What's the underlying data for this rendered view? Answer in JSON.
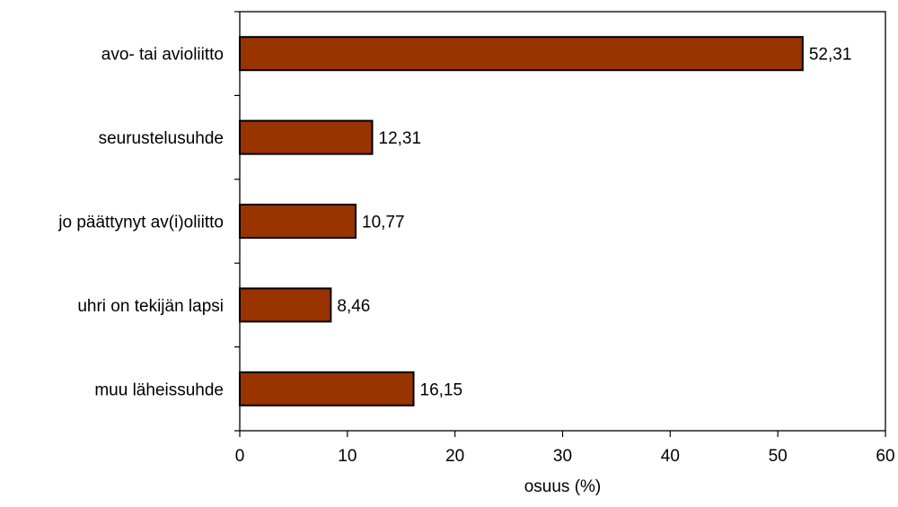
{
  "chart_data": {
    "type": "bar",
    "orientation": "horizontal",
    "title": "",
    "xlabel": "osuus (%)",
    "ylabel": "",
    "categories": [
      "avo- tai avioliitto",
      "seurustelusuhde",
      "jo päättynyt av(i)oliitto",
      "uhri on tekijän lapsi",
      "muu läheissuhde"
    ],
    "values": [
      52.31,
      12.31,
      10.77,
      8.46,
      16.15
    ],
    "value_labels": [
      "52,31",
      "12,31",
      "10,77",
      "8,46",
      "16,15"
    ],
    "xlim": [
      0,
      60
    ],
    "xticks": [
      0,
      10,
      20,
      30,
      40,
      50,
      60
    ],
    "xtick_labels": [
      "0",
      "10",
      "20",
      "30",
      "40",
      "50",
      "60"
    ],
    "grid": false,
    "legend": "none",
    "colors": {
      "bar_fill": "#993300",
      "bar_stroke": "#000000",
      "axis": "#000000",
      "background": "#ffffff"
    }
  }
}
